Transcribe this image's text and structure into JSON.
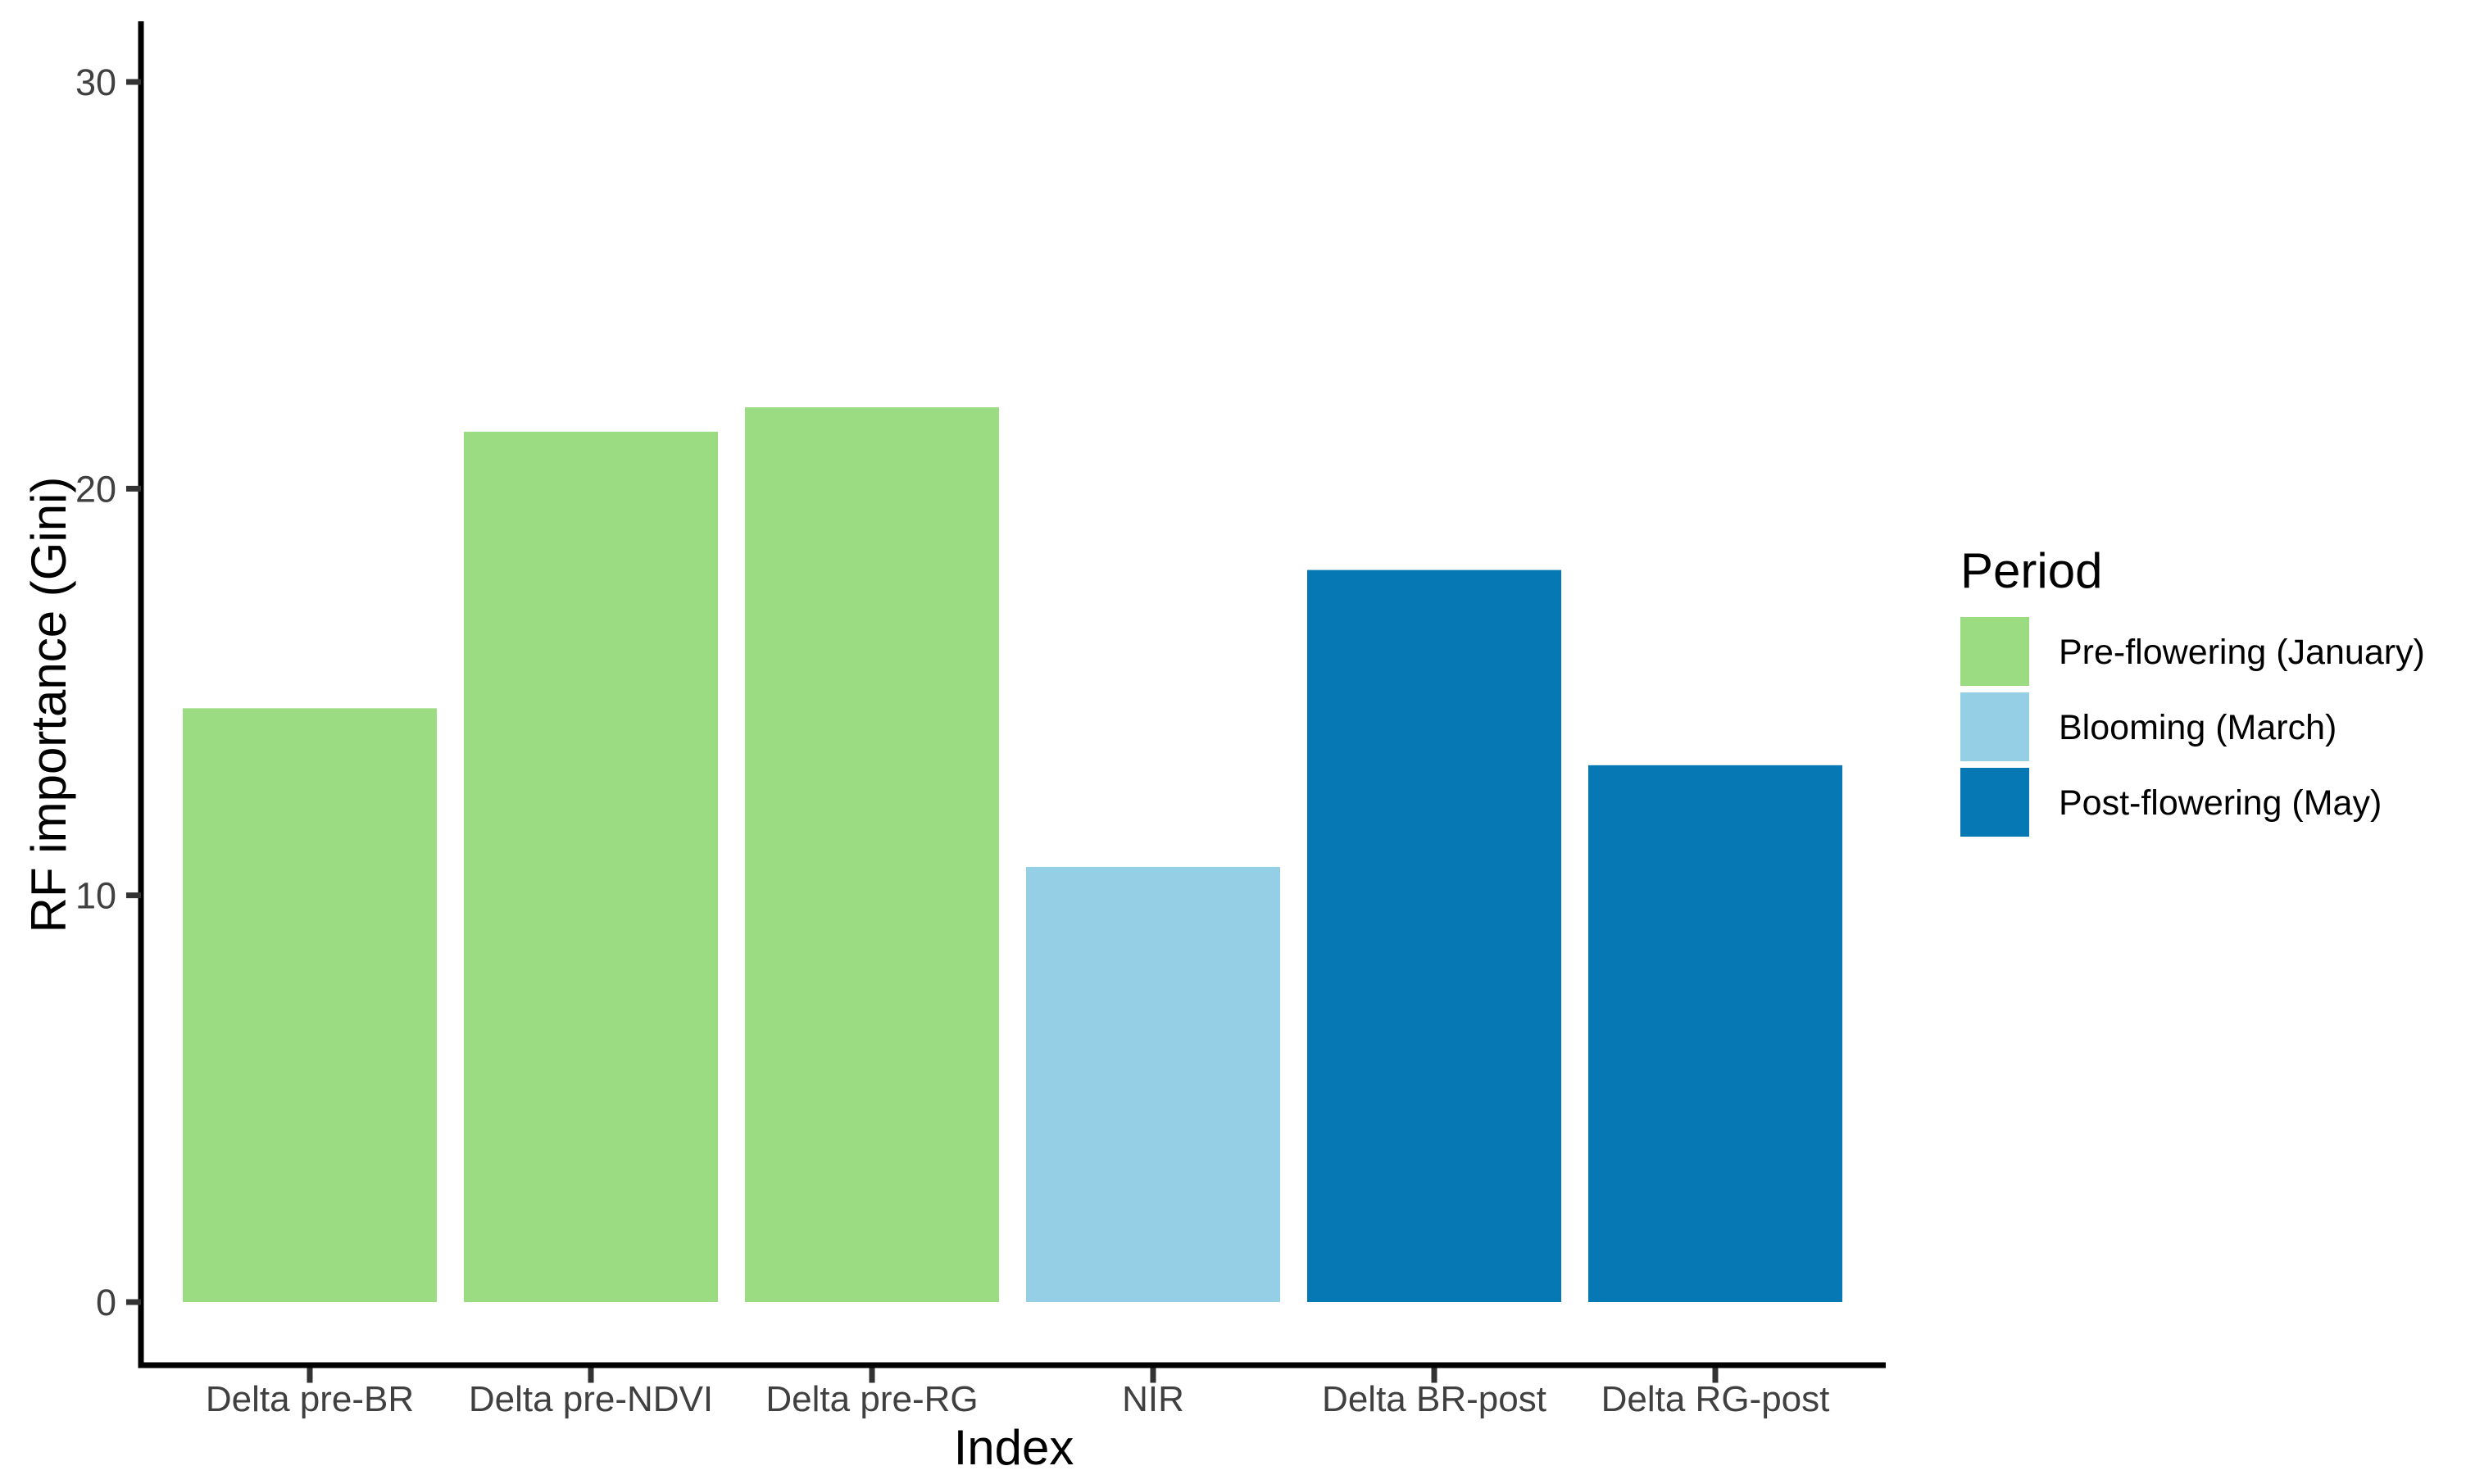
{
  "chart_data": {
    "type": "bar",
    "title": "",
    "xlabel": "Index",
    "ylabel": "RF importance (Gini)",
    "categories": [
      "Delta pre-BR",
      "Delta pre-NDVI",
      "Delta pre-RG",
      "NIR",
      "Delta BR-post",
      "Delta RG-post"
    ],
    "values": [
      14.6,
      21.4,
      22.0,
      10.7,
      18.0,
      13.2
    ],
    "bar_periods": [
      "Pre-flowering (January)",
      "Pre-flowering (January)",
      "Pre-flowering (January)",
      "Blooming (March)",
      "Post-flowering (May)",
      "Post-flowering (May)"
    ],
    "series": [
      {
        "name": "Pre-flowering (January)",
        "color": "#9BDC82",
        "categories": [
          "Delta pre-BR",
          "Delta pre-NDVI",
          "Delta pre-RG"
        ],
        "values": [
          14.6,
          21.4,
          22.0
        ]
      },
      {
        "name": "Blooming (March)",
        "color": "#95CFE5",
        "categories": [
          "NIR"
        ],
        "values": [
          10.7
        ]
      },
      {
        "name": "Post-flowering (May)",
        "color": "#0678B4",
        "categories": [
          "Delta BR-post",
          "Delta RG-post"
        ],
        "values": [
          18.0,
          13.2
        ]
      }
    ],
    "yticks": [
      0,
      10,
      20,
      30
    ],
    "ylim": [
      0,
      31.5
    ],
    "grid": false,
    "legend": {
      "title": "Period",
      "position": "right",
      "entries": [
        {
          "label": "Pre-flowering (January)",
          "color": "#9BDC82"
        },
        {
          "label": "Blooming (March)",
          "color": "#95CFE5"
        },
        {
          "label": "Post-flowering (May)",
          "color": "#0678B4"
        }
      ]
    },
    "colors": {
      "axis_line": "#000000",
      "tick_mark": "#333333",
      "tick_label": "#404040",
      "axis_title": "#000000",
      "background": "#FFFFFF"
    }
  }
}
